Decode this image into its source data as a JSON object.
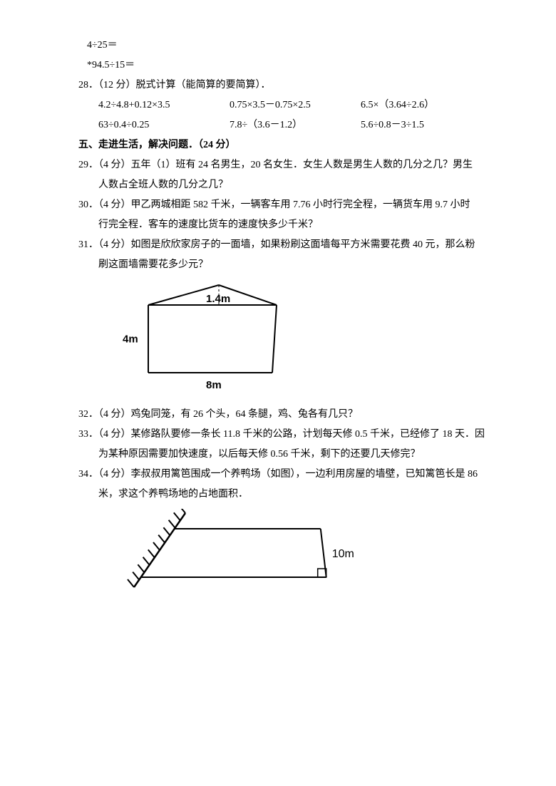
{
  "calc_lines": {
    "a": "4÷25＝",
    "b": "*94.5÷15＝"
  },
  "q28": {
    "head": "28．（12 分）脱式计算（能简算的要简算）．",
    "r1c1": "4.2÷4.8+0.12×3.5",
    "r1c2": "0.75×3.5－0.75×2.5",
    "r1c3": "6.5×（3.64÷2.6）",
    "r2c1": "63÷0.4÷0.25",
    "r2c2": "7.8÷（3.6－1.2）",
    "r2c3": "5.6÷0.8－3÷1.5"
  },
  "section5": "五、走进生活，解决问题．（24 分）",
  "q29": {
    "l1": "29．（4 分）五年（1）班有 24 名男生，20 名女生．女生人数是男生人数的几分之几？男生",
    "l2": "人数占全班人数的几分之几？"
  },
  "q30": {
    "l1": "30．（4 分）甲乙两城相距 582 千米，一辆客车用 7.76 小时行完全程，一辆货车用 9.7 小时",
    "l2": "行完全程．客车的速度比货车的速度快多少千米？"
  },
  "q31": {
    "l1": "31．（4 分）如图是欣欣家房子的一面墙，如果粉刷这面墙每平方米需要花费 40 元，那么粉",
    "l2": "刷这面墙需要花多少元？"
  },
  "fig31": {
    "label_top": "1.4m",
    "label_left": "4m",
    "label_bottom": "8m",
    "rect_w": 180,
    "rect_h": 95,
    "tri_h": 28,
    "fontsize": 15
  },
  "q32": "32．（4 分）鸡兔同笼，有 26 个头，64 条腿，鸡、兔各有几只？",
  "q33": {
    "l1": "33．（4 分）某修路队要修一条长 11.8 千米的公路，计划每天修 0.5 千米，已经修了 18 天．因",
    "l2": "为某种原因需要加快速度，以后每天修 0.56 千米，剩下的还要几天修完？"
  },
  "q34": {
    "l1": "34．（4 分）李叔叔用篱笆围成一个养鸭场（如图），一边利用房屋的墙壁，已知篱笆长是 86",
    "l2": "米，求这个养鸭场地的占地面积．"
  },
  "fig34": {
    "label_right": "10m",
    "top_len": 205,
    "bot_len": 260,
    "height": 68,
    "fontsize": 16
  },
  "colors": {
    "text": "#000000",
    "bg": "#ffffff"
  }
}
